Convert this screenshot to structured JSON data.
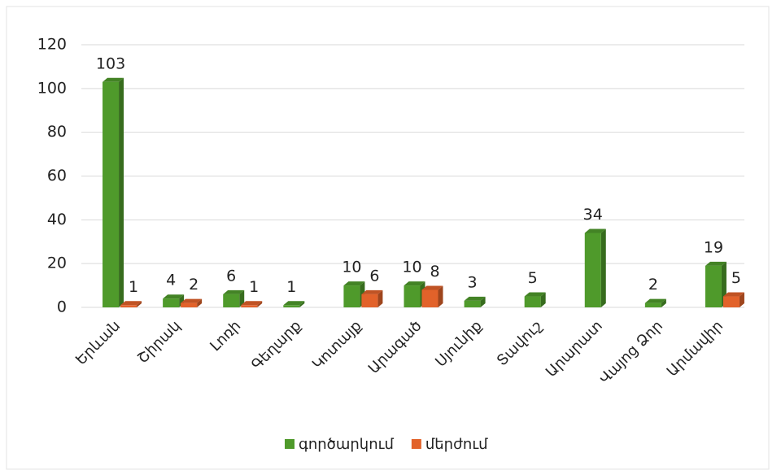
{
  "chart_data": {
    "type": "bar3d",
    "categories": [
      "Երևան",
      "Շիրակ",
      "Լոռի",
      "Գեղարք",
      "Կոտայք",
      "Արագած",
      "Սյունիք",
      "Տավուշ",
      "Արարատ",
      "Վայոց Ձոր",
      "Արմավիր"
    ],
    "series": [
      {
        "name": "գործարկում",
        "color": "#4f9a2b",
        "values": [
          103,
          4,
          6,
          1,
          10,
          10,
          3,
          5,
          34,
          2,
          19
        ]
      },
      {
        "name": "մերժում",
        "color": "#e2622a",
        "values": [
          1,
          2,
          1,
          null,
          6,
          8,
          null,
          null,
          null,
          null,
          5
        ]
      }
    ],
    "ylim": [
      0,
      120
    ],
    "yticks": [
      0,
      20,
      40,
      60,
      80,
      100,
      120
    ],
    "grid": true,
    "legend": "bottom"
  }
}
